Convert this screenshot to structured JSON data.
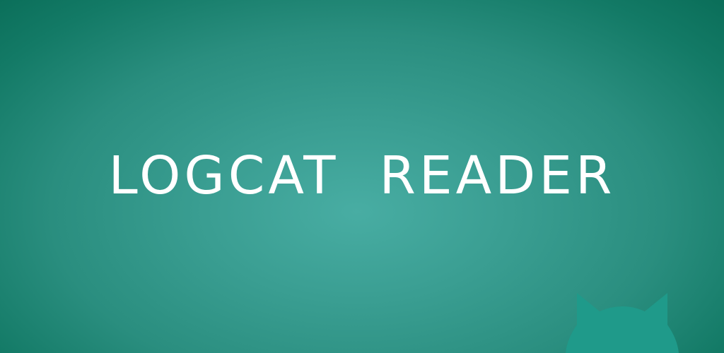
{
  "banner": {
    "title": "LOGCAT  READER",
    "logo_icon": "cat-head-icon",
    "colors": {
      "background_center": "#48ada3",
      "background_edge": "#0b6f5a",
      "title_text": "#ffffff",
      "cat_icon": "#1f9a8a"
    }
  }
}
